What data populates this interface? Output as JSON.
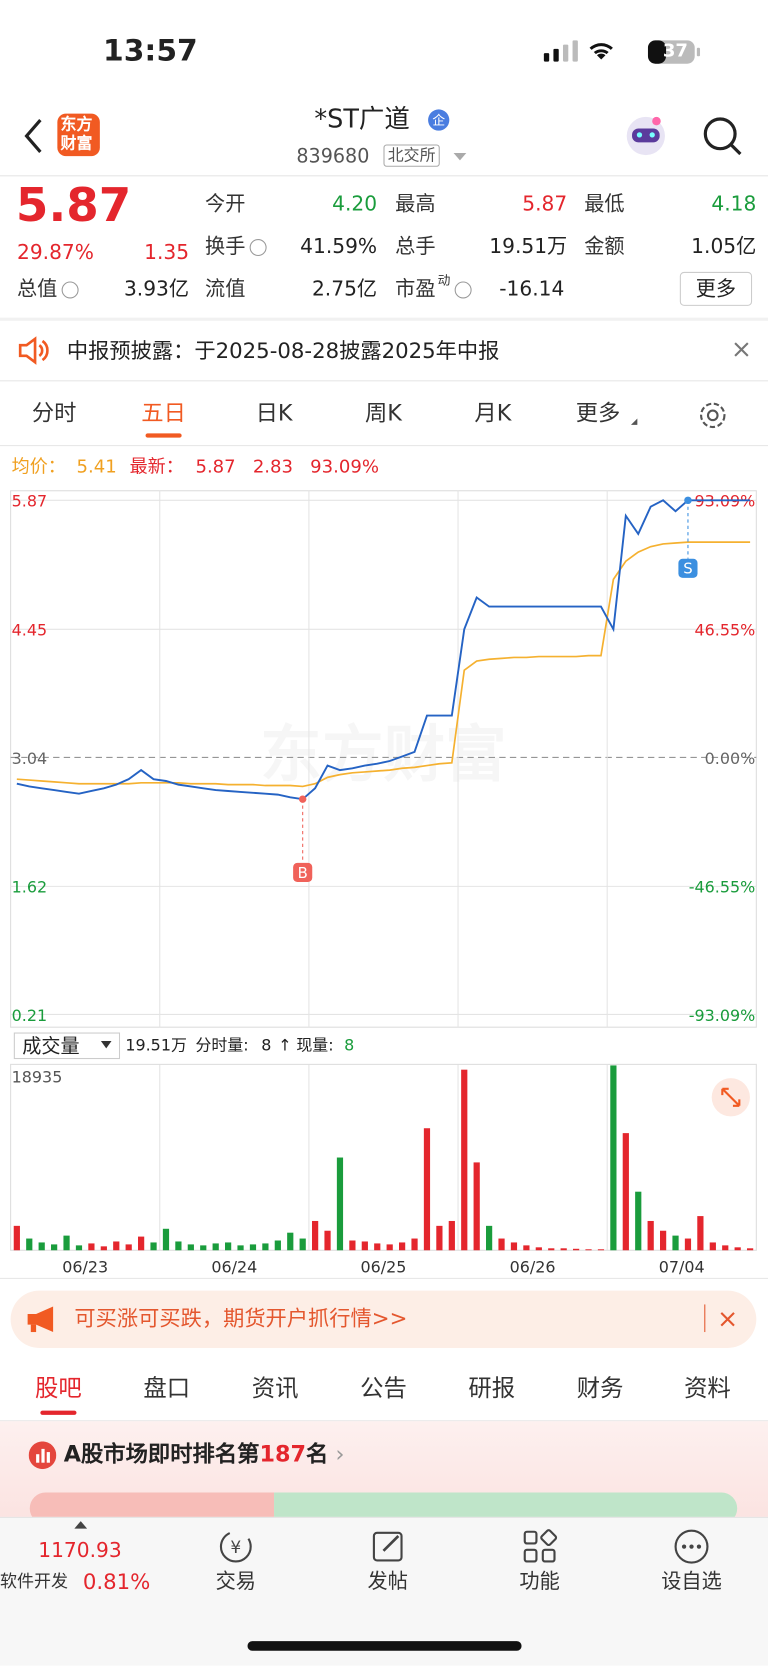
{
  "status": {
    "time": "13:57",
    "battery": "37"
  },
  "header": {
    "logo": [
      "东方",
      "财富"
    ],
    "title": "*ST广道",
    "badge": "企",
    "code": "839680",
    "exchange": "北交所"
  },
  "quote": {
    "price": "5.87",
    "change_pct": "29.87%",
    "change": "1.35",
    "fields": [
      {
        "label": "今开",
        "value": "4.20",
        "color": "#1a9c3c"
      },
      {
        "label": "最高",
        "value": "5.87",
        "color": "#e4262d"
      },
      {
        "label": "最低",
        "value": "4.18",
        "color": "#1a9c3c"
      },
      {
        "label": "换手",
        "value": "41.59%"
      },
      {
        "label": "总手",
        "value": "19.51万"
      },
      {
        "label": "金额",
        "value": "1.05亿"
      },
      {
        "label": "总值",
        "value": "3.93亿"
      },
      {
        "label": "流值",
        "value": "2.75亿"
      },
      {
        "label": "市盈",
        "sup": "动",
        "value": "-16.14"
      }
    ],
    "more": "更多"
  },
  "notice": "中报预披露：于2025-08-28披露2025年中报",
  "tabs": {
    "items": [
      "分时",
      "五日",
      "日K",
      "周K",
      "月K",
      "更多"
    ],
    "active": 1
  },
  "legend": {
    "avg_label": "均价：",
    "avg": "5.41",
    "last_label": "最新：",
    "last": "5.87",
    "change": "2.83",
    "pct": "93.09%"
  },
  "price_chart": {
    "watermark": "东方财富",
    "ylim": [
      0.21,
      5.87
    ],
    "yticks": [
      5.87,
      4.45,
      3.04,
      1.62,
      0.21
    ],
    "right_labels": [
      "93.09%",
      "46.55%",
      "0.00%",
      "-46.55%",
      "-93.09%"
    ],
    "days": [
      "06/23",
      "06/24",
      "06/25",
      "06/26",
      "07/04"
    ],
    "markers": [
      "B",
      "S"
    ],
    "price": [
      2.75,
      2.72,
      2.7,
      2.68,
      2.66,
      2.64,
      2.67,
      2.7,
      2.74,
      2.8,
      2.9,
      2.8,
      2.78,
      2.74,
      2.72,
      2.7,
      2.68,
      2.67,
      2.66,
      2.65,
      2.64,
      2.63,
      2.6,
      2.58,
      2.7,
      2.95,
      2.9,
      2.92,
      2.95,
      2.97,
      3.0,
      3.05,
      3.1,
      3.5,
      3.5,
      3.5,
      4.45,
      4.8,
      4.7,
      4.7,
      4.7,
      4.7,
      4.7,
      4.7,
      4.7,
      4.7,
      4.7,
      4.7,
      4.45,
      5.7,
      5.5,
      5.8,
      5.87,
      5.75,
      5.87,
      5.87,
      5.87,
      5.87,
      5.87,
      5.87
    ],
    "avg": [
      2.8,
      2.79,
      2.78,
      2.77,
      2.76,
      2.75,
      2.75,
      2.75,
      2.75,
      2.75,
      2.76,
      2.76,
      2.76,
      2.76,
      2.75,
      2.75,
      2.75,
      2.74,
      2.74,
      2.74,
      2.73,
      2.73,
      2.73,
      2.72,
      2.75,
      2.82,
      2.85,
      2.87,
      2.88,
      2.89,
      2.9,
      2.92,
      2.93,
      2.95,
      2.97,
      2.98,
      4.0,
      4.1,
      4.12,
      4.13,
      4.14,
      4.14,
      4.15,
      4.15,
      4.15,
      4.15,
      4.16,
      4.16,
      5.0,
      5.2,
      5.3,
      5.36,
      5.39,
      5.4,
      5.41,
      5.41,
      5.41,
      5.41,
      5.41,
      5.41
    ]
  },
  "volume": {
    "selector": "成交量",
    "total": "19.51万",
    "tick_label": "分时量:",
    "tick_value": "8",
    "arrow": "↑",
    "now_label": "现量:",
    "now_value": "8",
    "max": 18935,
    "values": [
      2500,
      1200,
      800,
      600,
      1500,
      500,
      700,
      400,
      900,
      600,
      1400,
      800,
      2200,
      900,
      600,
      500,
      700,
      800,
      500,
      600,
      700,
      1000,
      1800,
      1200,
      3000,
      2000,
      9500,
      1000,
      900,
      700,
      600,
      800,
      1200,
      12500,
      2500,
      3000,
      18500,
      9000,
      2500,
      1200,
      800,
      500,
      300,
      200,
      200,
      150,
      100,
      100,
      18935,
      12000,
      6000,
      3000,
      2000,
      1500,
      1200,
      3500,
      800,
      500,
      300,
      200
    ]
  },
  "ad": "可买涨可买跌，期货开户抓行情>>",
  "sub_tabs": {
    "items": [
      "股吧",
      "盘口",
      "资讯",
      "公告",
      "研报",
      "财务",
      "资料"
    ],
    "active": 0
  },
  "rank": {
    "prefix": "A股市场即时排名第",
    "number": "187",
    "suffix": "名"
  },
  "bottom": {
    "index": "1170.93",
    "sector": "软件开发",
    "pct": "0.81%",
    "items": [
      "交易",
      "发帖",
      "功能",
      "设自选"
    ]
  }
}
